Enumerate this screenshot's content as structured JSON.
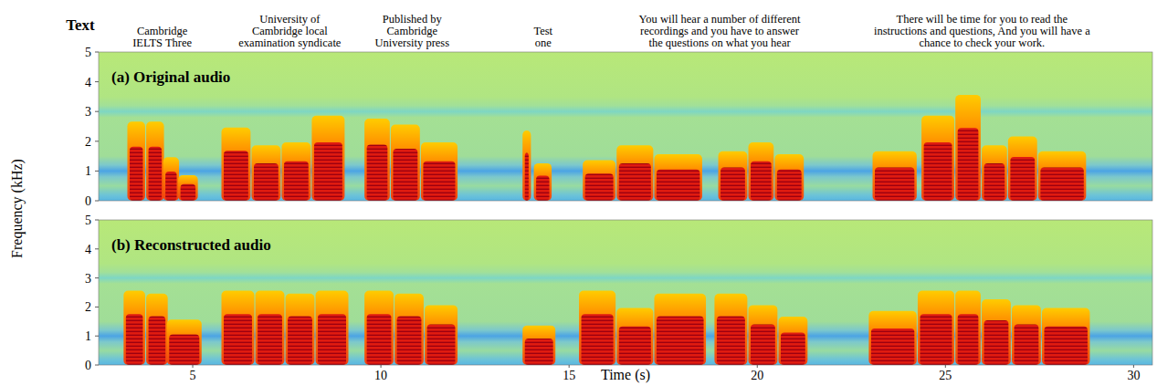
{
  "chart_data": {
    "type": "spectrogram",
    "text_heading": "Text",
    "phrases": [
      {
        "time": 4.19,
        "lines": [
          "Cambridge",
          "IELTS Three"
        ]
      },
      {
        "time": 7.58,
        "lines": [
          "University of",
          "Cambridge local",
          "examination syndicate"
        ]
      },
      {
        "time": 10.83,
        "lines": [
          "Published by",
          "Cambridge",
          "University press"
        ]
      },
      {
        "time": 14.31,
        "lines": [
          "Test",
          "one"
        ]
      },
      {
        "time": 19.0,
        "lines": [
          "You will hear a number of different",
          "recordings and you have to answer",
          "the questions on what you hear"
        ]
      },
      {
        "time": 25.97,
        "lines": [
          "There will be time for you to read the",
          "instructions and questions, And you will have a",
          "chance to check your work."
        ]
      }
    ],
    "xlabel": "Time (s)",
    "ylabel": "Frequency (kHz)",
    "xlim": [
      2.5,
      30.5
    ],
    "xticks": [
      5,
      10,
      15,
      20,
      25,
      30
    ],
    "ylim": [
      0,
      5
    ],
    "yticks": [
      0,
      1,
      2,
      3,
      4,
      5
    ],
    "panels": [
      {
        "title": "(a) Original audio",
        "syllables": [
          {
            "start": 3.3,
            "end": 3.7,
            "top": 2.6
          },
          {
            "start": 3.8,
            "end": 4.2,
            "top": 2.6
          },
          {
            "start": 4.25,
            "end": 4.6,
            "top": 1.4
          },
          {
            "start": 4.65,
            "end": 5.1,
            "top": 0.8
          },
          {
            "start": 5.8,
            "end": 6.5,
            "top": 2.4
          },
          {
            "start": 6.6,
            "end": 7.3,
            "top": 1.8
          },
          {
            "start": 7.4,
            "end": 8.1,
            "top": 1.9
          },
          {
            "start": 8.2,
            "end": 9.0,
            "top": 2.8
          },
          {
            "start": 9.6,
            "end": 10.2,
            "top": 2.7
          },
          {
            "start": 10.3,
            "end": 11.0,
            "top": 2.5
          },
          {
            "start": 11.1,
            "end": 12.0,
            "top": 1.9
          },
          {
            "start": 13.8,
            "end": 13.95,
            "top": 2.3
          },
          {
            "start": 14.1,
            "end": 14.5,
            "top": 1.2
          },
          {
            "start": 15.4,
            "end": 16.2,
            "top": 1.3
          },
          {
            "start": 16.3,
            "end": 17.2,
            "top": 1.8
          },
          {
            "start": 17.3,
            "end": 18.5,
            "top": 1.5
          },
          {
            "start": 19.0,
            "end": 19.7,
            "top": 1.6
          },
          {
            "start": 19.8,
            "end": 20.4,
            "top": 1.9
          },
          {
            "start": 20.5,
            "end": 21.2,
            "top": 1.5
          },
          {
            "start": 23.1,
            "end": 24.2,
            "top": 1.6
          },
          {
            "start": 24.4,
            "end": 25.2,
            "top": 2.8
          },
          {
            "start": 25.3,
            "end": 25.9,
            "top": 3.5
          },
          {
            "start": 26.0,
            "end": 26.6,
            "top": 1.8
          },
          {
            "start": 26.7,
            "end": 27.4,
            "top": 2.1
          },
          {
            "start": 27.5,
            "end": 28.7,
            "top": 1.6
          }
        ]
      },
      {
        "title": "(b) Reconstructed audio",
        "syllables": [
          {
            "start": 3.2,
            "end": 3.7,
            "top": 2.5
          },
          {
            "start": 3.8,
            "end": 4.3,
            "top": 2.4
          },
          {
            "start": 4.35,
            "end": 5.2,
            "top": 1.5
          },
          {
            "start": 5.8,
            "end": 6.6,
            "top": 2.5
          },
          {
            "start": 6.7,
            "end": 7.4,
            "top": 2.5
          },
          {
            "start": 7.5,
            "end": 8.2,
            "top": 2.4
          },
          {
            "start": 8.3,
            "end": 9.1,
            "top": 2.5
          },
          {
            "start": 9.6,
            "end": 10.3,
            "top": 2.5
          },
          {
            "start": 10.4,
            "end": 11.1,
            "top": 2.4
          },
          {
            "start": 11.2,
            "end": 12.0,
            "top": 2.0
          },
          {
            "start": 13.8,
            "end": 14.6,
            "top": 1.3
          },
          {
            "start": 15.3,
            "end": 16.2,
            "top": 2.5
          },
          {
            "start": 16.3,
            "end": 17.2,
            "top": 1.9
          },
          {
            "start": 17.3,
            "end": 18.6,
            "top": 2.4
          },
          {
            "start": 18.9,
            "end": 19.7,
            "top": 2.4
          },
          {
            "start": 19.8,
            "end": 20.5,
            "top": 2.0
          },
          {
            "start": 20.6,
            "end": 21.3,
            "top": 1.6
          },
          {
            "start": 23.0,
            "end": 24.2,
            "top": 1.8
          },
          {
            "start": 24.3,
            "end": 25.2,
            "top": 2.5
          },
          {
            "start": 25.3,
            "end": 25.9,
            "top": 2.5
          },
          {
            "start": 26.0,
            "end": 26.7,
            "top": 2.2
          },
          {
            "start": 26.8,
            "end": 27.5,
            "top": 2.0
          },
          {
            "start": 27.6,
            "end": 28.8,
            "top": 1.9
          }
        ]
      }
    ]
  }
}
